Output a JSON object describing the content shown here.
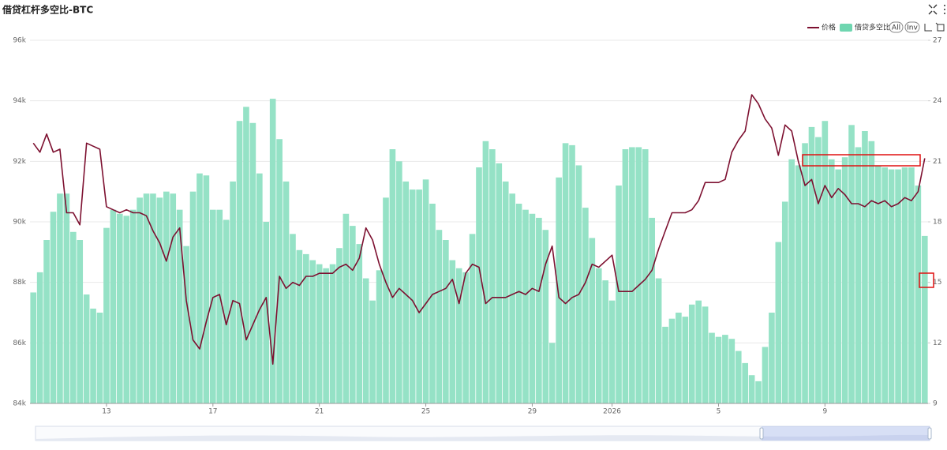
{
  "chart_data": {
    "type": "combo",
    "title": "借贷杠杆多空比-BTC",
    "categories": [
      null,
      null,
      null,
      null,
      null,
      null,
      null,
      null,
      null,
      null,
      null,
      "13",
      null,
      null,
      null,
      null,
      null,
      null,
      null,
      null,
      null,
      null,
      null,
      null,
      null,
      null,
      null,
      "17",
      null,
      null,
      null,
      null,
      null,
      null,
      null,
      null,
      null,
      null,
      null,
      null,
      null,
      null,
      null,
      "21",
      null,
      null,
      null,
      null,
      null,
      null,
      null,
      null,
      null,
      null,
      null,
      null,
      null,
      null,
      null,
      "25",
      null,
      null,
      null,
      null,
      null,
      null,
      null,
      null,
      null,
      null,
      null,
      null,
      null,
      null,
      null,
      "29",
      null,
      null,
      null,
      null,
      null,
      null,
      null,
      null,
      null,
      null,
      null,
      "2026",
      null,
      null,
      null,
      null,
      null,
      null,
      null,
      null,
      null,
      null,
      null,
      null,
      null,
      null,
      null,
      "5",
      null,
      null,
      null,
      null,
      null,
      null,
      null,
      null,
      null,
      null,
      null,
      null,
      null,
      null,
      null,
      "9",
      null,
      null,
      null,
      null,
      null,
      null,
      null,
      null,
      null,
      null,
      null,
      null,
      null,
      null,
      null
    ],
    "series": [
      {
        "name": "价格",
        "type": "line",
        "color": "#7d1030",
        "values": [
          92600,
          92300,
          92900,
          92300,
          92400,
          90300,
          90300,
          89900,
          92600,
          92500,
          92400,
          90500,
          90400,
          90300,
          90400,
          90300,
          90300,
          90200,
          89700,
          89300,
          88700,
          89500,
          89800,
          87400,
          86100,
          85800,
          86700,
          87500,
          87600,
          86600,
          87400,
          87300,
          86100,
          86600,
          87100,
          87500,
          85300,
          88200,
          87800,
          88000,
          87900,
          88200,
          88200,
          88300,
          88300,
          88300,
          88500,
          88600,
          88400,
          88800,
          89800,
          89400,
          88600,
          88000,
          87500,
          87800,
          87600,
          87400,
          87000,
          87300,
          87600,
          87700,
          87800,
          88100,
          87300,
          88300,
          88600,
          88500,
          87300,
          87500,
          87500,
          87500,
          87600,
          87700,
          87600,
          87800,
          87700,
          88600,
          89200,
          87500,
          87300,
          87500,
          87600,
          88000,
          88600,
          88500,
          88700,
          88900,
          87700,
          87700,
          87700,
          87900,
          88100,
          88400,
          89100,
          89700,
          90300,
          90300,
          90300,
          90400,
          90700,
          91300,
          91300,
          91300,
          91400,
          92300,
          92700,
          93000,
          94200,
          93900,
          93400,
          93100,
          92200,
          93200,
          93000,
          92000,
          91200,
          91400,
          90600,
          91200,
          90800,
          91100,
          90900,
          90600,
          90600,
          90500,
          90700,
          90600,
          90700,
          90500,
          90600,
          90800,
          90700,
          91000,
          92100
        ]
      },
      {
        "name": "借贷多空比",
        "type": "bar",
        "axis": "y2",
        "color": "#95e2c6",
        "values": [
          14.5,
          15.5,
          17.1,
          18.5,
          19.4,
          19.4,
          17.5,
          17.1,
          14.4,
          13.7,
          13.5,
          17.7,
          18.6,
          18.4,
          18.3,
          18.6,
          19.2,
          19.4,
          19.4,
          19.2,
          19.5,
          19.4,
          18.6,
          16.8,
          19.5,
          20.4,
          20.3,
          18.6,
          18.6,
          18.1,
          20.0,
          23.0,
          23.7,
          22.9,
          20.4,
          18.0,
          24.1,
          22.1,
          20.0,
          17.4,
          16.6,
          16.4,
          16.1,
          15.9,
          15.7,
          15.9,
          16.7,
          18.4,
          17.8,
          16.9,
          15.2,
          14.1,
          15.6,
          19.2,
          21.6,
          21.0,
          20.0,
          19.6,
          19.6,
          20.1,
          18.9,
          17.6,
          17.1,
          16.1,
          15.7,
          15.5,
          17.4,
          20.7,
          22.0,
          21.6,
          20.9,
          20.0,
          19.4,
          18.9,
          18.6,
          18.4,
          18.2,
          17.6,
          12.0,
          20.2,
          21.9,
          21.8,
          20.8,
          18.7,
          17.2,
          15.7,
          15.1,
          14.1,
          19.8,
          21.6,
          21.7,
          21.7,
          21.6,
          18.2,
          15.2,
          12.8,
          13.2,
          13.5,
          13.3,
          13.9,
          14.1,
          13.8,
          12.5,
          12.3,
          12.4,
          12.2,
          11.6,
          11.0,
          10.4,
          10.1,
          11.8,
          13.5,
          17.0,
          19.0,
          21.1,
          20.8,
          21.9,
          22.7,
          22.2,
          23.0,
          21.1,
          20.6,
          21.2,
          22.8,
          21.7,
          22.5,
          22.0,
          20.8,
          20.7,
          20.6,
          20.6,
          20.7,
          20.7,
          19.8,
          17.3
        ]
      }
    ],
    "ylim": [
      84000,
      96000
    ],
    "yticks": [
      {
        "value": 84000,
        "label": "84k"
      },
      {
        "value": 86000,
        "label": "86k"
      },
      {
        "value": 88000,
        "label": "88k"
      },
      {
        "value": 90000,
        "label": "90k"
      },
      {
        "value": 92000,
        "label": "92k"
      },
      {
        "value": 94000,
        "label": "94k"
      },
      {
        "value": 96000,
        "label": "96k"
      }
    ],
    "y2lim": [
      9,
      27
    ],
    "y2ticks": [
      9,
      12,
      15,
      18,
      21,
      24,
      27
    ],
    "grid": true,
    "controls": [
      "All",
      "Inv"
    ]
  }
}
